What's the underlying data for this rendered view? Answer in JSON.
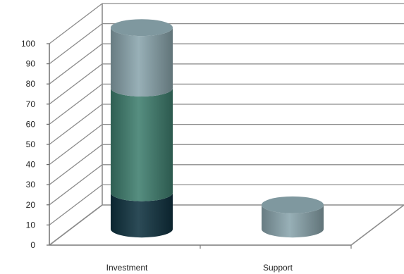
{
  "chart_data": {
    "type": "bar",
    "stacked": true,
    "three_d": true,
    "bar_shape": "cylinder",
    "title": "",
    "xlabel": "",
    "ylabel": "",
    "ylim": [
      0,
      100
    ],
    "yticks": [
      "0",
      "10",
      "20",
      "30",
      "40",
      "50",
      "60",
      "70",
      "80",
      "90",
      "100"
    ],
    "grid": true,
    "legend": "none",
    "categories": [
      "Investment",
      "Support"
    ],
    "series": [
      {
        "values": [
          18,
          0
        ],
        "color": "#0f3240"
      },
      {
        "values": [
          52,
          0
        ],
        "color": "#3f7f6f"
      },
      {
        "values": [
          30,
          12
        ],
        "color": "#8aa5ad"
      }
    ]
  }
}
